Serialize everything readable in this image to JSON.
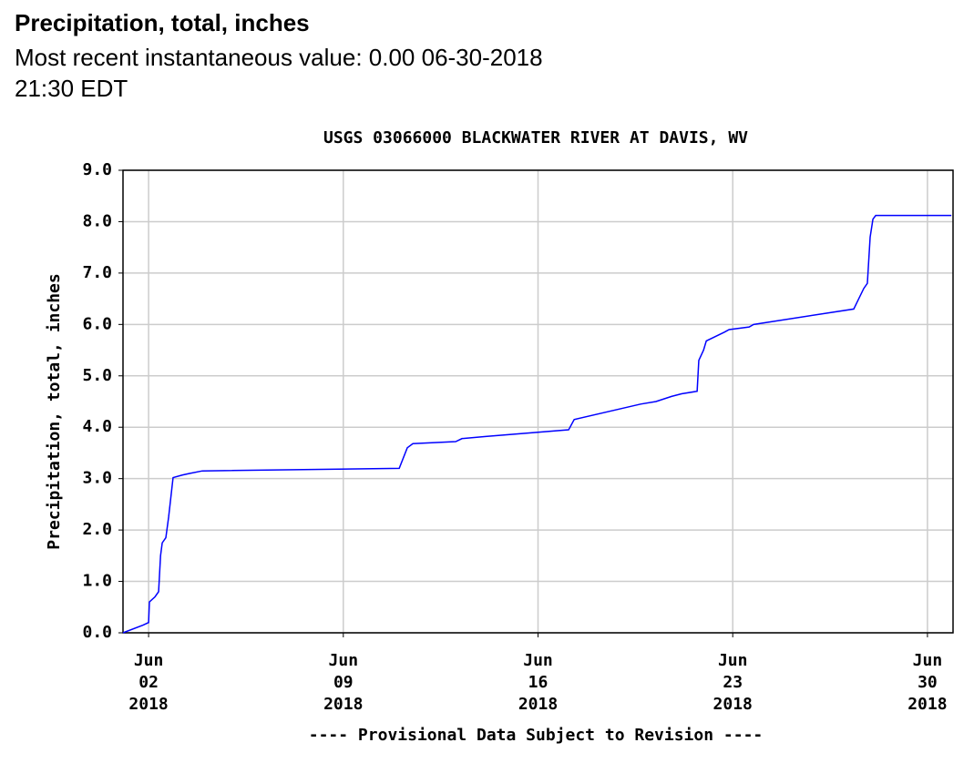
{
  "header": {
    "title": "Precipitation, total, inches",
    "subtitle": "Most recent instantaneous value: 0.00 06-30-2018   21:30 EDT"
  },
  "chart_data": {
    "type": "line",
    "title": "USGS 03066000 BLACKWATER RIVER AT DAVIS, WV",
    "y_label": "Precipitation, total, inches",
    "footnote": "---- Provisional Data Subject to Revision ----",
    "x": [
      1.08,
      1.8,
      2.0,
      2.03,
      2.23,
      2.36,
      2.43,
      2.49,
      2.62,
      2.72,
      2.88,
      3.21,
      3.47,
      3.93,
      11.01,
      11.3,
      11.5,
      13.04,
      13.27,
      14.12,
      17.1,
      17.3,
      19.69,
      20.24,
      20.8,
      21.16,
      21.72,
      21.78,
      21.95,
      22.05,
      22.7,
      22.87,
      23.59,
      23.75,
      27.35,
      27.71,
      27.84,
      27.94,
      28.04,
      28.14,
      30.86
    ],
    "series": [
      {
        "name": "Precipitation",
        "color": "#0000ff",
        "values": [
          0,
          0.15,
          0.2,
          0.6,
          0.7,
          0.8,
          1.5,
          1.75,
          1.85,
          2.25,
          3.02,
          3.07,
          3.1,
          3.15,
          3.2,
          3.6,
          3.68,
          3.72,
          3.78,
          3.82,
          3.95,
          4.15,
          4.45,
          4.5,
          4.6,
          4.65,
          4.7,
          5.3,
          5.5,
          5.68,
          5.85,
          5.9,
          5.95,
          6.0,
          6.3,
          6.7,
          6.8,
          7.7,
          8.05,
          8.12,
          8.12
        ]
      }
    ],
    "xlim": [
      1.08,
      30.92
    ],
    "xticks": [
      {
        "value": 2,
        "label": "Jun\n02\n2018"
      },
      {
        "value": 9,
        "label": "Jun\n09\n2018"
      },
      {
        "value": 16,
        "label": "Jun\n16\n2018"
      },
      {
        "value": 23,
        "label": "Jun\n23\n2018"
      },
      {
        "value": 30,
        "label": "Jun\n30\n2018"
      }
    ],
    "ylim": [
      0,
      9
    ],
    "yticks": [
      {
        "value": 0,
        "label": "0.0"
      },
      {
        "value": 1,
        "label": "1.0"
      },
      {
        "value": 2,
        "label": "2.0"
      },
      {
        "value": 3,
        "label": "3.0"
      },
      {
        "value": 4,
        "label": "4.0"
      },
      {
        "value": 5,
        "label": "5.0"
      },
      {
        "value": 6,
        "label": "6.0"
      },
      {
        "value": 7,
        "label": "7.0"
      },
      {
        "value": 8,
        "label": "8.0"
      },
      {
        "value": 9,
        "label": "9.0"
      }
    ],
    "grid": true,
    "footnote_color": "#ee0000"
  }
}
